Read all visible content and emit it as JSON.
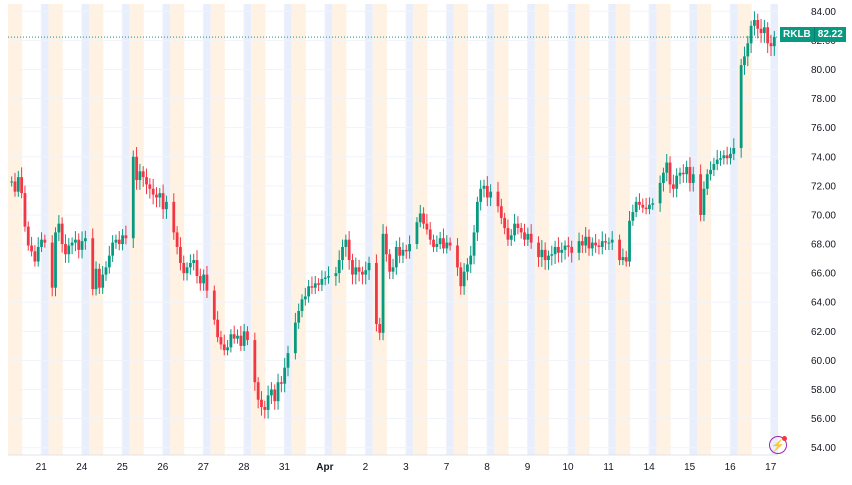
{
  "symbol": "RKLB",
  "last_price": "82.22",
  "colors": {
    "up": "#089981",
    "down": "#f23645",
    "pre": "#fff2e3",
    "post": "#e8eefc",
    "grid": "#f0f3fa",
    "lastline": "#089981"
  },
  "brand_icon": "lightning-icon",
  "chart_data": {
    "type": "candlestick",
    "title": "",
    "xlabel": "",
    "ylabel": "",
    "ylim": [
      53.5,
      84.5
    ],
    "y_ticks": [
      "84.00",
      "82.00",
      "80.00",
      "78.00",
      "76.00",
      "74.00",
      "72.00",
      "70.00",
      "68.00",
      "66.00",
      "64.00",
      "62.00",
      "60.00",
      "58.00",
      "56.00",
      "54.00"
    ],
    "x_ticks": [
      "21",
      "24",
      "25",
      "26",
      "27",
      "28",
      "31",
      "Apr",
      "2",
      "3",
      "7",
      "8",
      "9",
      "10",
      "11",
      "14",
      "15",
      "16",
      "17"
    ],
    "grid": true,
    "last_value": 82.22,
    "sessions": [
      {
        "label": "21",
        "points": [
          72.3,
          71.6,
          72.6,
          71.5,
          69.2,
          67.9,
          67.5,
          66.8,
          67.8,
          68.3,
          68.1
        ]
      },
      {
        "label": "24",
        "points": [
          65.0,
          68.8,
          69.4,
          68.0,
          67.3,
          67.9,
          68.1,
          68.3,
          67.6,
          68.2,
          68.4
        ]
      },
      {
        "label": "25",
        "points": [
          64.9,
          66.3,
          65.0,
          65.9,
          66.4,
          67.2,
          68.1,
          68.3,
          68.0,
          68.6,
          68.4
        ]
      },
      {
        "label": "26",
        "points": [
          74.0,
          72.4,
          73.0,
          72.6,
          72.1,
          71.8,
          71.4,
          71.2,
          71.5,
          70.4,
          70.9
        ]
      },
      {
        "label": "27",
        "points": [
          68.8,
          67.8,
          66.7,
          66.0,
          66.4,
          66.7,
          66.9,
          65.8,
          65.3,
          65.9,
          64.8
        ]
      },
      {
        "label": "28",
        "points": [
          62.8,
          61.6,
          61.1,
          60.7,
          60.9,
          61.8,
          61.5,
          61.7,
          61.0,
          62.0,
          61.4
        ]
      },
      {
        "label": "31",
        "points": [
          58.5,
          57.3,
          56.8,
          56.6,
          57.6,
          58.0,
          57.2,
          58.5,
          58.4,
          59.5,
          60.5
        ]
      },
      {
        "label": "Apr",
        "points": [
          62.6,
          63.4,
          64.2,
          64.4,
          65.1,
          65.0,
          65.3,
          65.2,
          65.6,
          65.7,
          65.8
        ]
      },
      {
        "label": "2",
        "points": [
          66.0,
          66.9,
          67.8,
          68.3,
          66.9,
          65.9,
          66.4,
          66.1,
          65.9,
          66.2,
          66.7
        ]
      },
      {
        "label": "3",
        "points": [
          62.5,
          61.9,
          68.7,
          67.3,
          66.1,
          66.4,
          67.8,
          67.2,
          67.6,
          67.5,
          68.0
        ]
      },
      {
        "label": "7",
        "points": [
          69.5,
          70.1,
          69.4,
          69.0,
          68.3,
          67.8,
          68.0,
          68.4,
          67.7,
          68.1,
          67.9
        ]
      },
      {
        "label": "8",
        "points": [
          66.4,
          65.1,
          66.1,
          66.6,
          67.2,
          68.8,
          70.9,
          71.8,
          72.0,
          71.2,
          71.6
        ]
      },
      {
        "label": "9",
        "points": [
          70.6,
          69.8,
          69.1,
          68.3,
          68.6,
          69.4,
          69.1,
          68.8,
          68.3,
          68.7,
          68.1
        ]
      },
      {
        "label": "10",
        "points": [
          67.1,
          67.6,
          66.9,
          67.2,
          67.3,
          67.8,
          67.4,
          67.6,
          67.9,
          67.8,
          67.4
        ]
      },
      {
        "label": "11",
        "points": [
          68.2,
          67.9,
          68.5,
          67.7,
          68.1,
          67.9,
          67.8,
          68.2,
          68.1,
          68.1,
          68.3
        ]
      },
      {
        "label": "14",
        "points": [
          66.9,
          67.1,
          66.8,
          69.6,
          70.2,
          70.9,
          70.7,
          70.5,
          70.4,
          70.7,
          70.8
        ]
      },
      {
        "label": "15",
        "points": [
          72.2,
          72.9,
          73.6,
          72.1,
          71.8,
          72.7,
          72.9,
          72.8,
          73.3,
          72.2,
          72.8
        ]
      },
      {
        "label": "16",
        "points": [
          70.0,
          71.8,
          72.8,
          73.1,
          73.5,
          73.8,
          73.9,
          74.1,
          73.9,
          74.2,
          74.6
        ]
      },
      {
        "label": "17",
        "points": [
          80.3,
          80.9,
          81.8,
          83.0,
          83.4,
          82.8,
          82.5,
          82.9,
          81.8,
          81.6,
          82.22
        ]
      }
    ]
  }
}
